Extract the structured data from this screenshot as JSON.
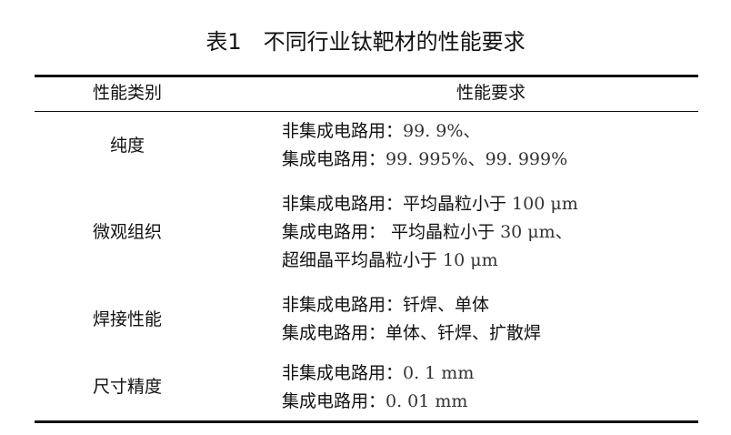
{
  "title": "表1　不同行业钛靶材的性能要求",
  "headers": [
    "性能类别",
    "性能要求"
  ],
  "rows": [
    {
      "category": "纯度",
      "lines": [
        [
          "非集成电路用：",
          "99. 9%、"
        ],
        [
          "集成电路用：",
          "99. 995%、99. 999%"
        ]
      ]
    },
    {
      "category": "微观组织",
      "lines": [
        [
          "非集成电路用：平均晶粒小于 ",
          "100 μm"
        ],
        [
          "集成电路用： 平均晶粒小于 ",
          "30 μm、"
        ],
        [
          "超细晶平均晶粒小于 ",
          "10 μm"
        ]
      ]
    },
    {
      "category": "焊接性能",
      "lines": [
        [
          "非集成电路用：钎焊、单体",
          ""
        ],
        [
          "集成电路用：单体、钎焊、扩散焊",
          ""
        ]
      ]
    },
    {
      "category": "尺寸精度",
      "lines": [
        [
          "非集成电路用：",
          "0. 1 mm"
        ],
        [
          "集成电路用：",
          "0. 01 mm"
        ]
      ]
    }
  ]
}
